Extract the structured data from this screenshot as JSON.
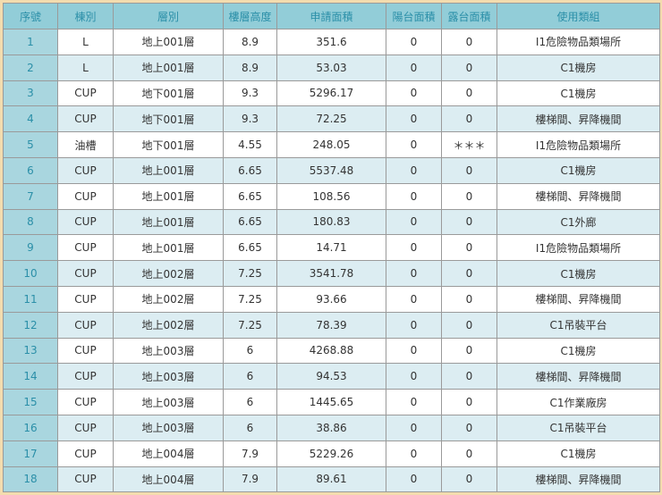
{
  "headers": [
    "序號",
    "棟別",
    "層別",
    "樓層高度",
    "申請面積",
    "陽台面積",
    "露台面積",
    "使用類組"
  ],
  "rows": [
    [
      "1",
      "L",
      "地上001層",
      "8.9",
      "351.6",
      "0",
      "0",
      "I1危險物品類場所"
    ],
    [
      "2",
      "L",
      "地上001層",
      "8.9",
      "53.03",
      "0",
      "0",
      "C1機房"
    ],
    [
      "3",
      "CUP",
      "地下001層",
      "9.3",
      "5296.17",
      "0",
      "0",
      "C1機房"
    ],
    [
      "4",
      "CUP",
      "地下001層",
      "9.3",
      "72.25",
      "0",
      "0",
      "樓梯間、昇降機間"
    ],
    [
      "5",
      "油槽",
      "地下001層",
      "4.55",
      "248.05",
      "0",
      "＊＊＊",
      "I1危險物品類場所"
    ],
    [
      "6",
      "CUP",
      "地上001層",
      "6.65",
      "5537.48",
      "0",
      "0",
      "C1機房"
    ],
    [
      "7",
      "CUP",
      "地上001層",
      "6.65",
      "108.56",
      "0",
      "0",
      "樓梯間、昇降機間"
    ],
    [
      "8",
      "CUP",
      "地上001層",
      "6.65",
      "180.83",
      "0",
      "0",
      "C1外廊"
    ],
    [
      "9",
      "CUP",
      "地上001層",
      "6.65",
      "14.71",
      "0",
      "0",
      "I1危險物品類場所"
    ],
    [
      "10",
      "CUP",
      "地上002層",
      "7.25",
      "3541.78",
      "0",
      "0",
      "C1機房"
    ],
    [
      "11",
      "CUP",
      "地上002層",
      "7.25",
      "93.66",
      "0",
      "0",
      "樓梯間、昇降機間"
    ],
    [
      "12",
      "CUP",
      "地上002層",
      "7.25",
      "78.39",
      "0",
      "0",
      "C1吊裝平台"
    ],
    [
      "13",
      "CUP",
      "地上003層",
      "6",
      "4268.88",
      "0",
      "0",
      "C1機房"
    ],
    [
      "14",
      "CUP",
      "地上003層",
      "6",
      "94.53",
      "0",
      "0",
      "樓梯間、昇降機間"
    ],
    [
      "15",
      "CUP",
      "地上003層",
      "6",
      "1445.65",
      "0",
      "0",
      "C1作業廠房"
    ],
    [
      "16",
      "CUP",
      "地上003層",
      "6",
      "38.86",
      "0",
      "0",
      "C1吊裝平台"
    ],
    [
      "17",
      "CUP",
      "地上004層",
      "7.9",
      "5229.26",
      "0",
      "0",
      "C1機房"
    ],
    [
      "18",
      "CUP",
      "地上004層",
      "7.9",
      "89.61",
      "0",
      "0",
      "樓梯間、昇降機間"
    ]
  ]
}
